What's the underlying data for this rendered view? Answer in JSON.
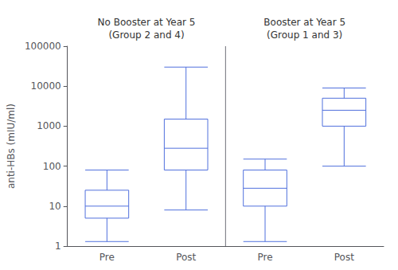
{
  "chart_data": {
    "type": "boxplot",
    "ylabel": "anti-HBs (mIU/ml)",
    "annotations": [
      "No Booster at Year 5\n(Group 2 and 4)",
      "Booster at Year 5\n(Group 1 and 3)"
    ],
    "categories": [
      "Pre",
      "Post",
      "Pre",
      "Post"
    ],
    "values": [
      [
        1.3,
        5,
        10,
        25,
        80
      ],
      [
        8,
        80,
        280,
        1500,
        30000
      ],
      [
        1.3,
        10,
        28,
        80,
        150
      ],
      [
        100,
        1000,
        2500,
        5000,
        9000
      ]
    ],
    "ylim": [
      1,
      100000
    ],
    "yticks": [
      1,
      10,
      100,
      1000,
      10000,
      100000
    ],
    "log": "y",
    "grid": false
  }
}
